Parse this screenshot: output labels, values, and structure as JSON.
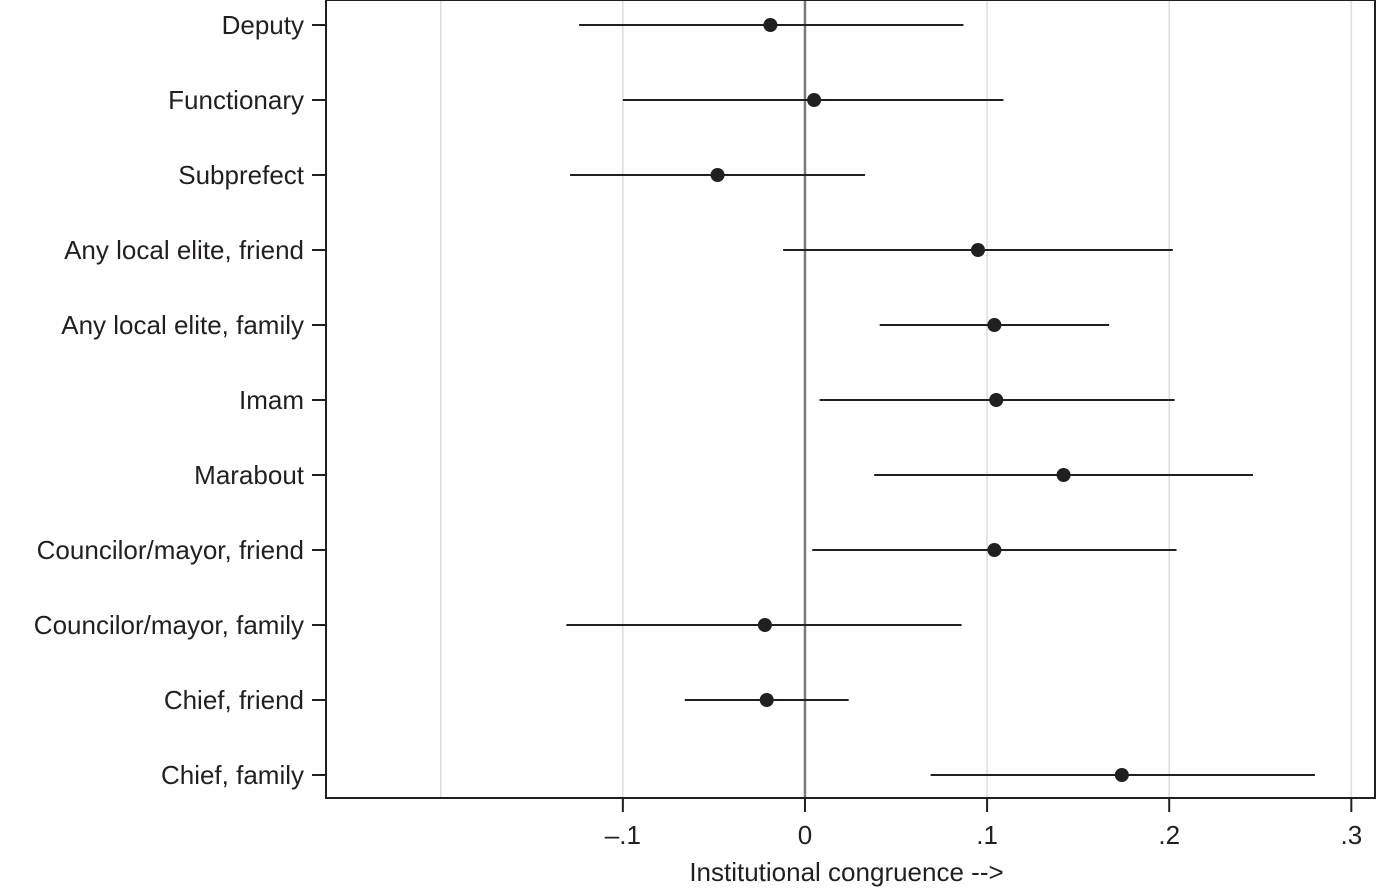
{
  "chart_data": {
    "type": "coefficient-plot",
    "title": "",
    "xlabel": "Institutional congruence -->",
    "ylabel": "",
    "xlim": [
      -0.263,
      0.313
    ],
    "xticks": [
      -0.1,
      0,
      0.1,
      0.2,
      0.3
    ],
    "xtick_labels": [
      "–.1",
      "0",
      ".1",
      ".2",
      ".3"
    ],
    "grid_x": [
      -0.2,
      -0.1,
      0.1,
      0.2,
      0.3
    ],
    "reference_line_x": 0,
    "grid": true,
    "legend": "none",
    "categories": [
      "Deputy",
      "Functionary",
      "Subprefect",
      "Any local elite, friend",
      "Any local elite, family",
      "Imam",
      "Marabout",
      "Councilor/mayor, friend",
      "Councilor/mayor, family",
      "Chief, friend",
      "Chief, family"
    ],
    "estimates": [
      -0.019,
      0.005,
      -0.048,
      0.095,
      0.104,
      0.105,
      0.142,
      0.104,
      -0.022,
      -0.021,
      0.174
    ],
    "ci_low": [
      -0.124,
      -0.1,
      -0.129,
      -0.012,
      0.041,
      0.008,
      0.038,
      0.004,
      -0.131,
      -0.066,
      0.069
    ],
    "ci_high": [
      0.087,
      0.109,
      0.033,
      0.202,
      0.167,
      0.203,
      0.246,
      0.204,
      0.086,
      0.024,
      0.28
    ],
    "colors": {
      "marker": "#231f20",
      "line": "#231f20",
      "grid": "#dcdcdc",
      "refline": "#7a7a7a"
    }
  }
}
